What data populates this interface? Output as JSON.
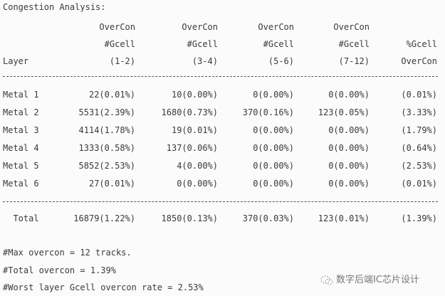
{
  "title": "Congestion Analysis:",
  "header": {
    "row1": [
      "OverCon",
      "OverCon",
      "OverCon",
      "OverCon",
      ""
    ],
    "row2": [
      "#Gcell",
      "#Gcell",
      "#Gcell",
      "#Gcell",
      "%Gcell"
    ],
    "row3": {
      "layer": "Layer",
      "cols": [
        "(1-2)",
        "(3-4)",
        "(5-6)",
        "(7-12)",
        "OverCon"
      ]
    }
  },
  "rows": [
    {
      "layer": "Metal 1",
      "cols": [
        "22(0.01%)",
        "10(0.00%)",
        "0(0.00%)",
        "0(0.00%)",
        "(0.01%)"
      ]
    },
    {
      "layer": "Metal 2",
      "cols": [
        "5531(2.39%)",
        "1680(0.73%)",
        "370(0.16%)",
        "123(0.05%)",
        "(3.33%)"
      ]
    },
    {
      "layer": "Metal 3",
      "cols": [
        "4114(1.78%)",
        "19(0.01%)",
        "0(0.00%)",
        "0(0.00%)",
        "(1.79%)"
      ]
    },
    {
      "layer": "Metal 4",
      "cols": [
        "1333(0.58%)",
        "137(0.06%)",
        "0(0.00%)",
        "0(0.00%)",
        "(0.64%)"
      ]
    },
    {
      "layer": "Metal 5",
      "cols": [
        "5852(2.53%)",
        "4(0.00%)",
        "0(0.00%)",
        "0(0.00%)",
        "(2.53%)"
      ]
    },
    {
      "layer": "Metal 6",
      "cols": [
        "27(0.01%)",
        "0(0.00%)",
        "0(0.00%)",
        "0(0.00%)",
        "(0.01%)"
      ]
    }
  ],
  "total": {
    "layer": "  Total",
    "cols": [
      "16879(1.22%)",
      "1850(0.13%)",
      "370(0.03%)",
      "123(0.01%)",
      "(1.39%)"
    ]
  },
  "footer": [
    "#Max overcon = 12 tracks.",
    "#Total overcon = 1.39%",
    "#Worst layer Gcell overcon rate = 2.53%"
  ],
  "watermark": "数字后端IC芯片设计"
}
